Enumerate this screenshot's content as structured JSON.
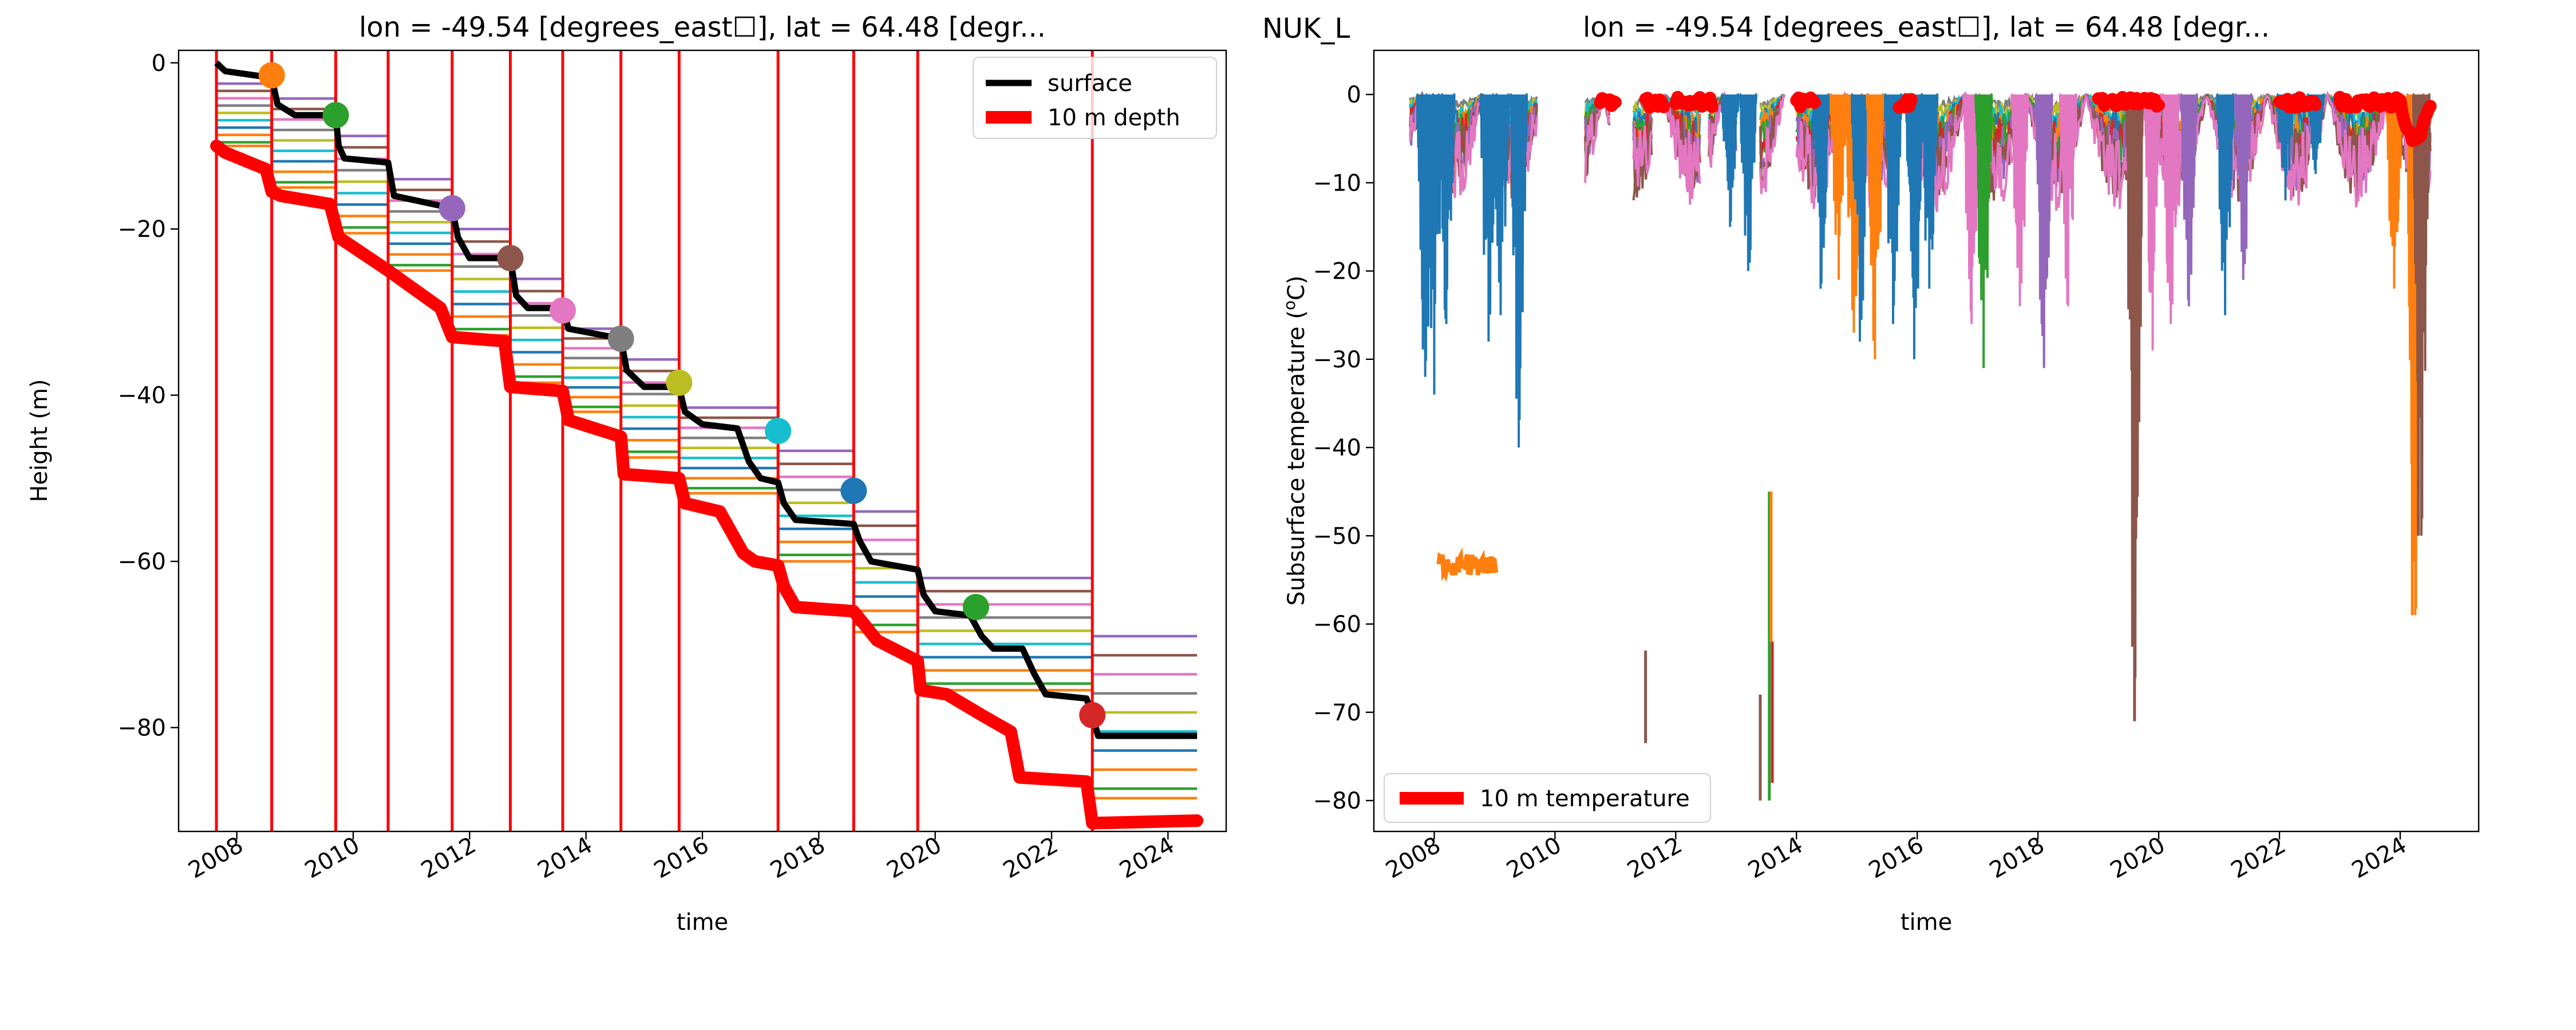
{
  "figure": {
    "station_label": "NUK_L"
  },
  "colors": {
    "tab10": [
      "#1f77b4",
      "#ff7f0e",
      "#2ca02c",
      "#d62728",
      "#9467bd",
      "#8c564b",
      "#e377c2",
      "#7f7f7f",
      "#bcbd22",
      "#17becf"
    ],
    "surface": "#000000",
    "depth10": "#ff0000",
    "vline": "#ff0000"
  },
  "chart_data": [
    {
      "type": "line",
      "title": "lon = -49.54 [degrees_east☐], lat = 64.48 [degr...",
      "xlabel": "time",
      "ylabel": "Height (m)",
      "xlim": [
        2007.0,
        2025.0
      ],
      "ylim": [
        -92.5,
        1.5
      ],
      "xticks": [
        2008,
        2010,
        2012,
        2014,
        2016,
        2018,
        2020,
        2022,
        2024
      ],
      "yticks": [
        0,
        -20,
        -40,
        -60,
        -80
      ],
      "legend": {
        "placement": "top-right",
        "entries": [
          {
            "label": "surface",
            "color": "#000000"
          },
          {
            "label": "10 m depth",
            "color": "#ff0000"
          }
        ]
      },
      "vertical_lines_x": [
        2007.65,
        2008.6,
        2009.7,
        2010.6,
        2011.7,
        2012.7,
        2013.6,
        2014.6,
        2015.6,
        2017.3,
        2018.6,
        2019.7,
        2022.7
      ],
      "series": [
        {
          "name": "surface",
          "points": [
            [
              2007.65,
              0
            ],
            [
              2007.8,
              -1
            ],
            [
              2008.6,
              -1.8
            ],
            [
              2008.7,
              -5
            ],
            [
              2009.0,
              -6.3
            ],
            [
              2009.7,
              -6.3
            ],
            [
              2009.75,
              -10
            ],
            [
              2009.85,
              -11.5
            ],
            [
              2010.6,
              -12
            ],
            [
              2010.7,
              -16
            ],
            [
              2011.7,
              -17.5
            ],
            [
              2011.8,
              -21
            ],
            [
              2012.0,
              -23.5
            ],
            [
              2012.7,
              -23.5
            ],
            [
              2012.8,
              -28
            ],
            [
              2013.0,
              -29.5
            ],
            [
              2013.6,
              -29.5
            ],
            [
              2013.7,
              -32
            ],
            [
              2014.6,
              -33.2
            ],
            [
              2014.7,
              -37
            ],
            [
              2015.0,
              -39
            ],
            [
              2015.6,
              -39
            ],
            [
              2015.7,
              -42
            ],
            [
              2016.0,
              -43.5
            ],
            [
              2016.6,
              -44
            ],
            [
              2016.8,
              -48
            ],
            [
              2017.0,
              -50
            ],
            [
              2017.3,
              -50.5
            ],
            [
              2017.4,
              -53
            ],
            [
              2017.6,
              -55
            ],
            [
              2018.6,
              -55.5
            ],
            [
              2018.7,
              -57.5
            ],
            [
              2018.9,
              -60
            ],
            [
              2019.7,
              -61
            ],
            [
              2019.8,
              -64
            ],
            [
              2020.0,
              -66
            ],
            [
              2020.6,
              -66.5
            ],
            [
              2020.8,
              -69
            ],
            [
              2021.0,
              -70.5
            ],
            [
              2021.5,
              -70.5
            ],
            [
              2021.7,
              -73.5
            ],
            [
              2021.9,
              -76
            ],
            [
              2022.6,
              -76.5
            ],
            [
              2022.7,
              -78.5
            ],
            [
              2022.8,
              -81
            ],
            [
              2024.5,
              -81
            ]
          ]
        },
        {
          "name": "10 m depth",
          "points": [
            [
              2007.65,
              -10
            ],
            [
              2007.8,
              -10.8
            ],
            [
              2008.5,
              -12.8
            ],
            [
              2008.6,
              -15.5
            ],
            [
              2008.75,
              -16
            ],
            [
              2009.6,
              -17
            ],
            [
              2009.75,
              -21
            ],
            [
              2010.6,
              -25
            ],
            [
              2011.5,
              -29.5
            ],
            [
              2011.7,
              -33
            ],
            [
              2012.6,
              -33.5
            ],
            [
              2012.7,
              -39
            ],
            [
              2013.6,
              -39.5
            ],
            [
              2013.7,
              -43
            ],
            [
              2014.6,
              -45
            ],
            [
              2014.65,
              -49.5
            ],
            [
              2015.6,
              -50
            ],
            [
              2015.7,
              -53
            ],
            [
              2016.3,
              -54
            ],
            [
              2016.7,
              -59
            ],
            [
              2016.9,
              -60
            ],
            [
              2017.3,
              -60.5
            ],
            [
              2017.4,
              -63
            ],
            [
              2017.6,
              -65.5
            ],
            [
              2018.6,
              -66
            ],
            [
              2019.0,
              -69.5
            ],
            [
              2019.7,
              -72
            ],
            [
              2019.75,
              -75.5
            ],
            [
              2020.2,
              -76
            ],
            [
              2020.8,
              -78.5
            ],
            [
              2021.3,
              -80.5
            ],
            [
              2021.45,
              -86
            ],
            [
              2022.6,
              -86.5
            ],
            [
              2022.7,
              -91.5
            ],
            [
              2024.5,
              -91.2
            ]
          ]
        }
      ],
      "stations": [
        {
          "x": 2007.65,
          "top": 0.0,
          "bottom": -10.0
        },
        {
          "x": 2008.6,
          "top": -1.8,
          "bottom": -15.0
        },
        {
          "x": 2009.7,
          "top": -6.3,
          "bottom": -20.5
        },
        {
          "x": 2010.6,
          "top": -11.5,
          "bottom": -25.0
        },
        {
          "x": 2011.7,
          "top": -17.5,
          "bottom": -32.8
        },
        {
          "x": 2012.7,
          "top": -23.5,
          "bottom": -38.5
        },
        {
          "x": 2013.6,
          "top": -29.5,
          "bottom": -42.0
        },
        {
          "x": 2014.6,
          "top": -33.2,
          "bottom": -47.5
        },
        {
          "x": 2015.6,
          "top": -39.0,
          "bottom": -51.8
        },
        {
          "x": 2017.3,
          "top": -44.2,
          "bottom": -60.0
        },
        {
          "x": 2018.6,
          "top": -51.5,
          "bottom": -68.5
        },
        {
          "x": 2019.7,
          "top": -59.5,
          "bottom": -75.5
        },
        {
          "x": 2022.7,
          "top": -66.5,
          "bottom": -88.5
        }
      ],
      "marker_points": [
        {
          "x": 2008.6,
          "y": -1.5
        },
        {
          "x": 2009.7,
          "y": -6.3
        },
        {
          "x": 2011.7,
          "y": -17.5
        },
        {
          "x": 2012.7,
          "y": -23.5
        },
        {
          "x": 2013.6,
          "y": -29.8
        },
        {
          "x": 2014.6,
          "y": -33.2
        },
        {
          "x": 2015.6,
          "y": -38.5
        },
        {
          "x": 2017.3,
          "y": -44.3
        },
        {
          "x": 2018.6,
          "y": -51.5
        },
        {
          "x": 2020.7,
          "y": -65.5
        },
        {
          "x": 2022.7,
          "y": -78.5
        }
      ]
    },
    {
      "type": "line",
      "title": "lon = -49.54 [degrees_east☐], lat = 64.48 [degr...",
      "xlabel": "time",
      "ylabel": "Subsurface temperature (°C)",
      "ylabel_parts": [
        "Subsurface temperature (",
        "o",
        "C)"
      ],
      "xlim": [
        2007.0,
        2025.3
      ],
      "ylim": [
        -83.5,
        5.0
      ],
      "xticks": [
        2008,
        2010,
        2012,
        2014,
        2016,
        2018,
        2020,
        2022,
        2024
      ],
      "yticks": [
        0,
        -10,
        -20,
        -30,
        -40,
        -50,
        -60,
        -70,
        -80
      ],
      "legend": {
        "placement": "bottom-left",
        "entries": [
          {
            "label": "10 m temperature",
            "color": "#ff0000"
          }
        ]
      },
      "data_segments": [
        [
          2007.6,
          2009.7
        ],
        [
          2010.5,
          2010.9
        ],
        [
          2011.3,
          2011.6
        ],
        [
          2011.8,
          2012.4
        ],
        [
          2012.55,
          2013.0
        ],
        [
          2013.4,
          2013.8
        ],
        [
          2014.0,
          2015.9
        ],
        [
          2016.0,
          2019.5
        ],
        [
          2019.5,
          2022.5
        ],
        [
          2022.6,
          2024.5
        ]
      ],
      "spikes": [
        {
          "x": 2007.85,
          "depth": -32,
          "series": 0
        },
        {
          "x": 2008.0,
          "depth": -34,
          "series": 0
        },
        {
          "x": 2008.2,
          "depth": -26,
          "series": 0
        },
        {
          "x": 2008.9,
          "depth": -28,
          "series": 0
        },
        {
          "x": 2009.1,
          "depth": -25,
          "series": 0
        },
        {
          "x": 2009.4,
          "depth": -40,
          "series": 0
        },
        {
          "x": 2014.4,
          "depth": -22,
          "series": 0
        },
        {
          "x": 2014.7,
          "depth": -21,
          "series": 1
        },
        {
          "x": 2014.95,
          "depth": -27,
          "series": 1
        },
        {
          "x": 2015.05,
          "depth": -28,
          "series": 0
        },
        {
          "x": 2015.3,
          "depth": -30,
          "series": 1
        },
        {
          "x": 2015.6,
          "depth": -26,
          "series": 0
        },
        {
          "x": 2015.95,
          "depth": -30,
          "series": 0
        },
        {
          "x": 2016.2,
          "depth": -22,
          "series": 0
        },
        {
          "x": 2016.9,
          "depth": -26,
          "series": 6
        },
        {
          "x": 2017.1,
          "depth": -31,
          "series": 2
        },
        {
          "x": 2017.7,
          "depth": -24,
          "series": 6
        },
        {
          "x": 2018.1,
          "depth": -31,
          "series": 4
        },
        {
          "x": 2018.5,
          "depth": -24,
          "series": 6
        },
        {
          "x": 2019.6,
          "depth": -71,
          "series": 5
        },
        {
          "x": 2019.9,
          "depth": -29,
          "series": 6
        },
        {
          "x": 2020.2,
          "depth": -26,
          "series": 6
        },
        {
          "x": 2020.5,
          "depth": -24,
          "series": 4
        },
        {
          "x": 2021.1,
          "depth": -25,
          "series": 0
        },
        {
          "x": 2021.4,
          "depth": -21,
          "series": 4
        },
        {
          "x": 2022.1,
          "depth": -12,
          "series": 0
        },
        {
          "x": 2022.6,
          "depth": -9,
          "series": 0
        },
        {
          "x": 2012.9,
          "depth": -15,
          "series": 0
        },
        {
          "x": 2013.2,
          "depth": -20,
          "series": 0
        },
        {
          "x": 2023.9,
          "depth": -22,
          "series": 1
        },
        {
          "x": 2024.25,
          "depth": -59,
          "series": 1
        },
        {
          "x": 2024.35,
          "depth": -50,
          "series": 5
        }
      ],
      "vertical_traces": [
        {
          "x": 2008.55,
          "y0": -52.0,
          "y1": -54.5,
          "series": 1,
          "width": 0.95
        },
        {
          "x": 2011.5,
          "y0": -63.0,
          "y1": -73.5,
          "series": 5,
          "width": 0
        },
        {
          "x": 2013.4,
          "y0": -68.0,
          "y1": -80.0,
          "series": 5,
          "width": 0
        },
        {
          "x": 2013.55,
          "y0": -45.0,
          "y1": -80.0,
          "series": 2,
          "width": 0
        },
        {
          "x": 2013.58,
          "y0": -45.0,
          "y1": -62.0,
          "series": 1,
          "width": 0
        },
        {
          "x": 2013.6,
          "y0": -62.0,
          "y1": -78.0,
          "series": 3,
          "width": 0
        },
        {
          "x": 2019.6,
          "y0": -20.0,
          "y1": -71.0,
          "series": 5,
          "width": 0
        },
        {
          "x": 2024.2,
          "y0": -20.0,
          "y1": -59.0,
          "series": 1,
          "width": 0
        },
        {
          "x": 2024.3,
          "y0": -22.0,
          "y1": -50.0,
          "series": 5,
          "width": 0
        }
      ],
      "red_segments": [
        [
          2010.75,
          2011.0
        ],
        [
          2011.5,
          2011.8
        ],
        [
          2012.0,
          2012.6
        ],
        [
          2014.0,
          2014.3
        ],
        [
          2015.7,
          2015.9
        ],
        [
          2019.0,
          2020.0
        ],
        [
          2022.0,
          2022.6
        ],
        [
          2023.0,
          2024.5
        ]
      ]
    }
  ]
}
